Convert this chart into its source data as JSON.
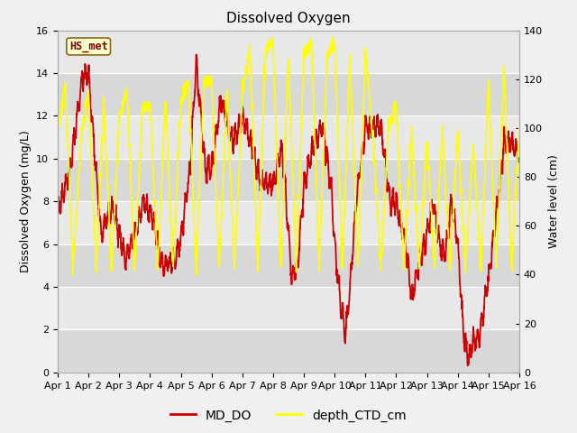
{
  "title": "Dissolved Oxygen",
  "ylabel_left": "Dissolved Oxygen (mg/L)",
  "ylabel_right": "Water level (cm)",
  "ylim_left": [
    0,
    16
  ],
  "ylim_right": [
    0,
    140
  ],
  "fig_bg": "#f0f0f0",
  "plot_bg": "#e8e8e8",
  "band_color_dark": "#d8d8d8",
  "band_color_light": "#e8e8e8",
  "label_box_text": "HS_met",
  "label_box_bg": "#ffffcc",
  "label_box_edge": "#8b6914",
  "color_do": "#cc0000",
  "color_depth": "#ffff00",
  "legend_labels": [
    "MD_DO",
    "depth_CTD_cm"
  ],
  "title_fontsize": 11,
  "axis_label_fontsize": 9,
  "tick_fontsize": 8,
  "legend_fontsize": 10
}
